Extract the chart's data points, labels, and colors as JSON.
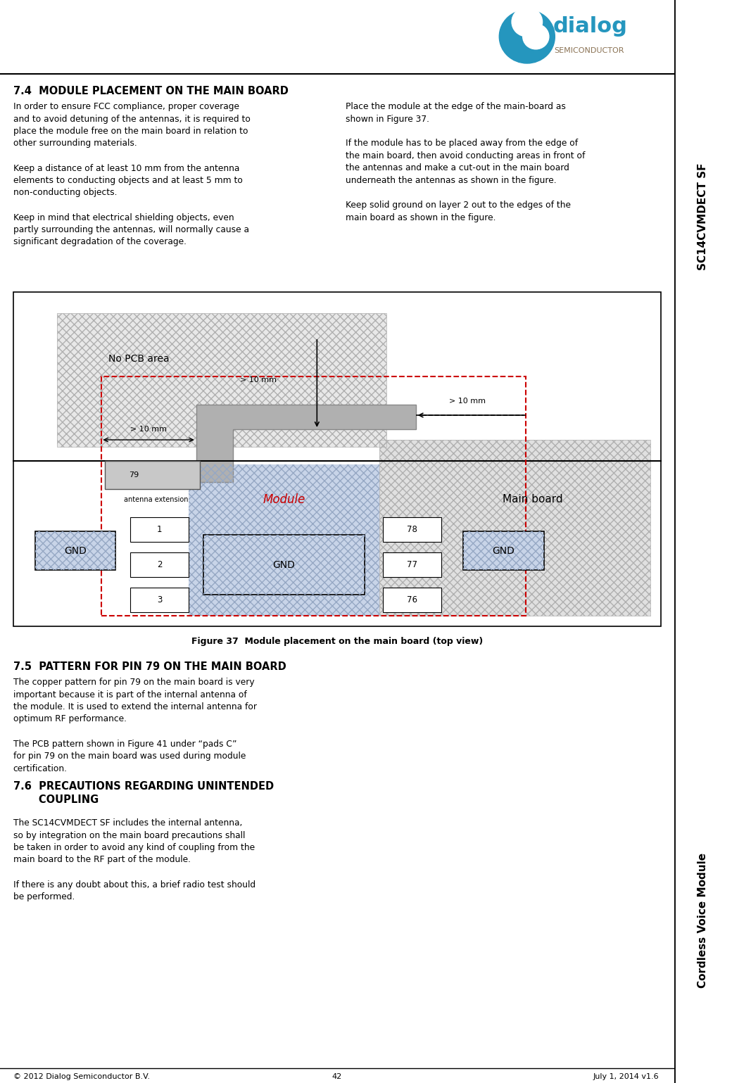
{
  "bg_color": "#ffffff",
  "sidebar_text_top": "SC14CVMDECT SF",
  "sidebar_text_bottom": "Cordless Voice Module",
  "footer_left": "© 2012 Dialog Semiconductor B.V.",
  "footer_center": "42",
  "footer_right": "July 1, 2014 v1.6",
  "section_74_title": "7.4  MODULE PLACEMENT ON THE MAIN BOARD",
  "figure_caption": "Figure 37  Module placement on the main board (top view)",
  "section_75_title": "7.5  PATTERN FOR PIN 79 ON THE MAIN BOARD",
  "section_76_title": "7.6  PRECAUTIONS REGARDING UNINTENDED\nCOUPLING",
  "accent_color": "#2596be",
  "logo_teal": "#2596be",
  "logo_brown": "#8B7355"
}
